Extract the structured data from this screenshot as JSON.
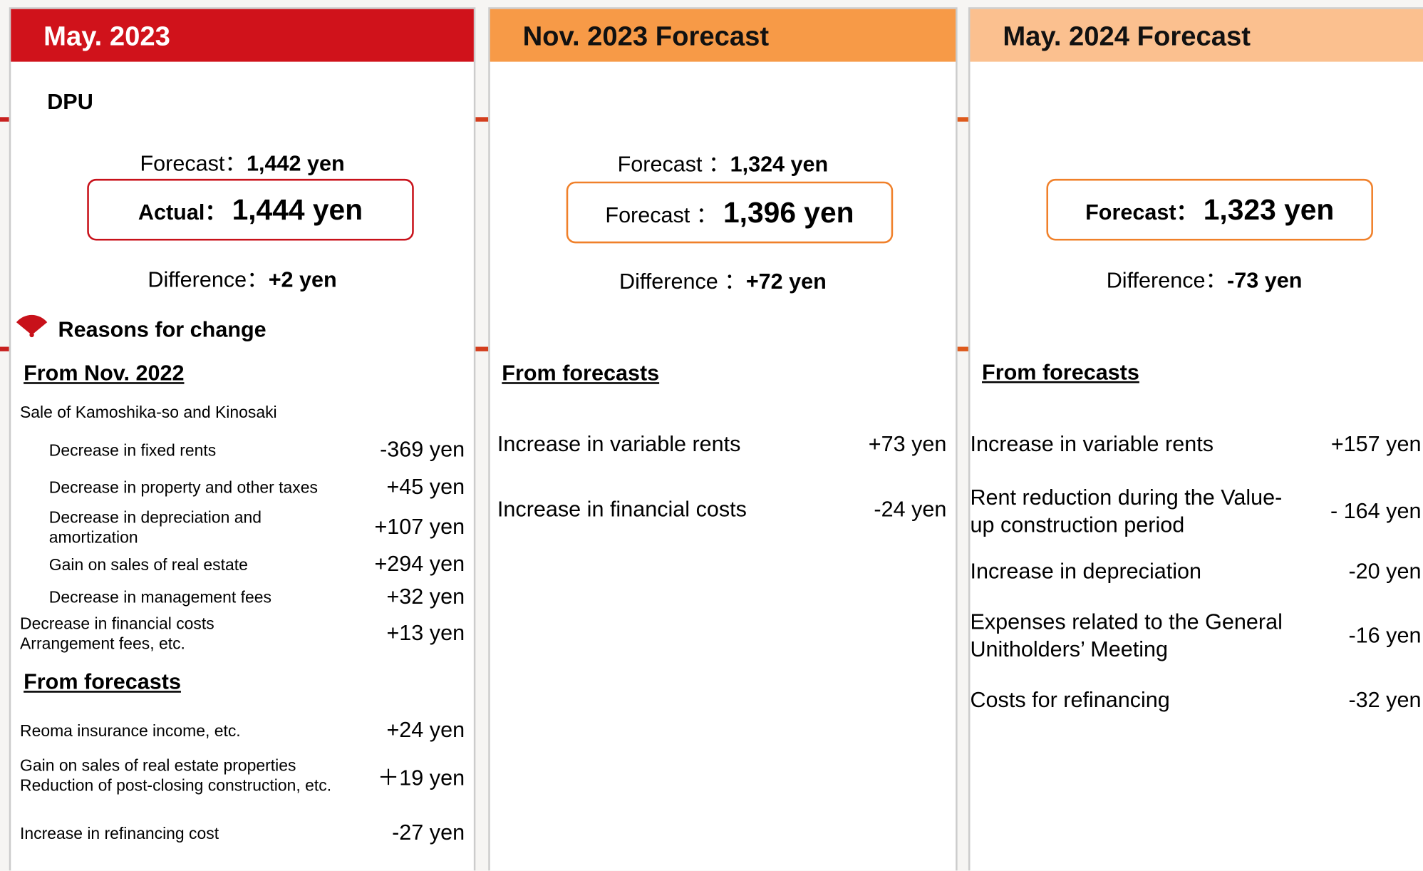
{
  "sections": {
    "dpu": "DPU",
    "reasons": "Reasons for change"
  },
  "columns": [
    {
      "title": "May. 2023",
      "forecast": {
        "label": "Forecast：",
        "value": "1,442 yen"
      },
      "main": {
        "label": "Actual：",
        "value": "1,444 yen"
      },
      "difference": {
        "label": "Difference：",
        "value": "+2 yen"
      },
      "groups": [
        {
          "heading": "From Nov. 2022",
          "subheading": "Sale of Kamoshika-so and Kinosaki",
          "sub_items": [
            {
              "label": "Decrease in fixed rents",
              "value": "-369 yen"
            },
            {
              "label": "Decrease in property and other taxes",
              "value": "+45 yen"
            },
            {
              "label": "Decrease in depreciation and amortization",
              "value": "+107 yen"
            },
            {
              "label": "Gain on sales of real estate",
              "value": "+294 yen"
            },
            {
              "label": "Decrease in management fees",
              "value": "+32 yen"
            }
          ],
          "items": [
            {
              "label": "Decrease in financial costs\nArrangement fees, etc.",
              "value": "+13 yen"
            }
          ]
        },
        {
          "heading": "From forecasts",
          "items": [
            {
              "label": "Reoma insurance income, etc.",
              "value": "+24 yen"
            },
            {
              "label": "Gain on sales of real estate properties\nReduction of post-closing construction, etc.",
              "value": "＋19 yen"
            },
            {
              "label": "Increase in refinancing cost",
              "value": "-27 yen"
            }
          ]
        }
      ]
    },
    {
      "title": "Nov. 2023 Forecast",
      "forecast": {
        "label": "Forecast ：",
        "value": "1,324 yen"
      },
      "main": {
        "label": "Forecast ：",
        "value": "1,396 yen"
      },
      "difference": {
        "label": "Difference ：",
        "value": "+72 yen"
      },
      "groups": [
        {
          "heading": "From forecasts",
          "items": [
            {
              "label": "Increase in variable rents",
              "value": "+73 yen"
            },
            {
              "label": "Increase in financial costs",
              "value": "-24 yen"
            }
          ]
        }
      ]
    },
    {
      "title": "May. 2024 Forecast",
      "main": {
        "label": "Forecast：",
        "value": "1,323 yen"
      },
      "difference": {
        "label": "Difference：",
        "value": "-73 yen"
      },
      "groups": [
        {
          "heading": "From forecasts",
          "items": [
            {
              "label": "Increase in variable rents",
              "value": "+157 yen"
            },
            {
              "label": "Rent reduction during the Value-\nup construction period",
              "value": "- 164 yen"
            },
            {
              "label": "Increase in depreciation",
              "value": "-20 yen"
            },
            {
              "label": "Expenses related to the General\nUnitholders’ Meeting",
              "value": "-16 yen"
            },
            {
              "label": "Costs for refinancing",
              "value": "-32 yen"
            }
          ]
        }
      ]
    }
  ]
}
